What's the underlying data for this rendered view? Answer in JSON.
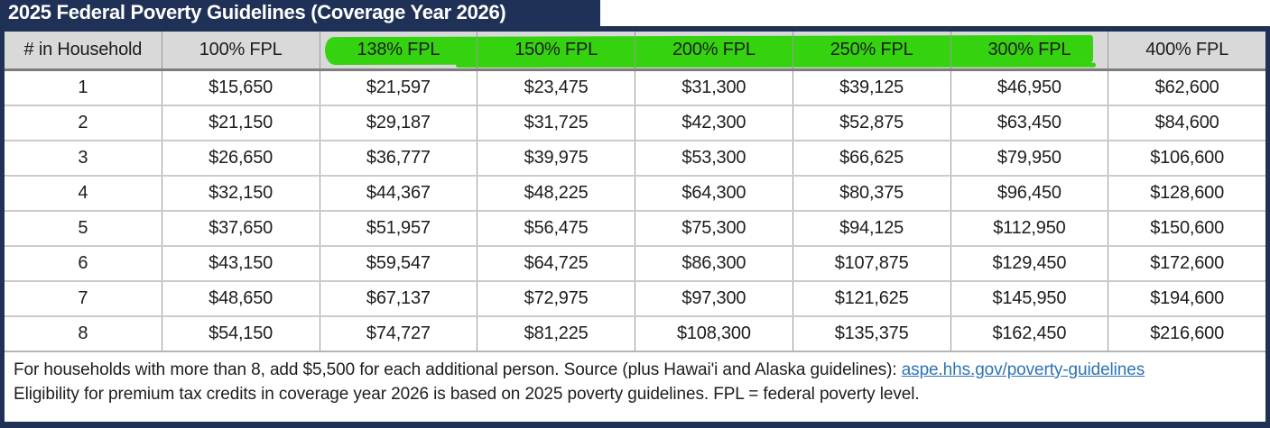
{
  "title": "2025 Federal Poverty Guidelines (Coverage Year 2026)",
  "colors": {
    "navy": "#1f3156",
    "green": "#35d30f",
    "header_bg": "#d9d9d9",
    "link": "#2e74b5",
    "text": "#1d1d1d"
  },
  "table": {
    "columns": [
      "# in Household",
      "100% FPL",
      "138% FPL",
      "150% FPL",
      "200% FPL",
      "250% FPL",
      "300% FPL",
      "400% FPL"
    ],
    "highlighted_columns": [
      "138% FPL",
      "150% FPL",
      "200% FPL",
      "250% FPL",
      "300% FPL"
    ],
    "rows": [
      [
        "1",
        "$15,650",
        "$21,597",
        "$23,475",
        "$31,300",
        "$39,125",
        "$46,950",
        "$62,600"
      ],
      [
        "2",
        "$21,150",
        "$29,187",
        "$31,725",
        "$42,300",
        "$52,875",
        "$63,450",
        "$84,600"
      ],
      [
        "3",
        "$26,650",
        "$36,777",
        "$39,975",
        "$53,300",
        "$66,625",
        "$79,950",
        "$106,600"
      ],
      [
        "4",
        "$32,150",
        "$44,367",
        "$48,225",
        "$64,300",
        "$80,375",
        "$96,450",
        "$128,600"
      ],
      [
        "5",
        "$37,650",
        "$51,957",
        "$56,475",
        "$75,300",
        "$94,125",
        "$112,950",
        "$150,600"
      ],
      [
        "6",
        "$43,150",
        "$59,547",
        "$64,725",
        "$86,300",
        "$107,875",
        "$129,450",
        "$172,600"
      ],
      [
        "7",
        "$48,650",
        "$67,137",
        "$72,975",
        "$97,300",
        "$121,625",
        "$145,950",
        "$194,600"
      ],
      [
        "8",
        "$54,150",
        "$74,727",
        "$81,225",
        "$108,300",
        "$135,375",
        "$162,450",
        "$216,600"
      ]
    ]
  },
  "footer": {
    "line1_before_link": "For households with more than 8, add $5,500 for each additional person.  Source (plus Hawai'i and Alaska guidelines): ",
    "link_text": "aspe.hhs.gov/poverty-guidelines",
    "line2": "Eligibility for premium tax credits in coverage year 2026 is based on 2025 poverty guidelines.  FPL = federal poverty level."
  }
}
